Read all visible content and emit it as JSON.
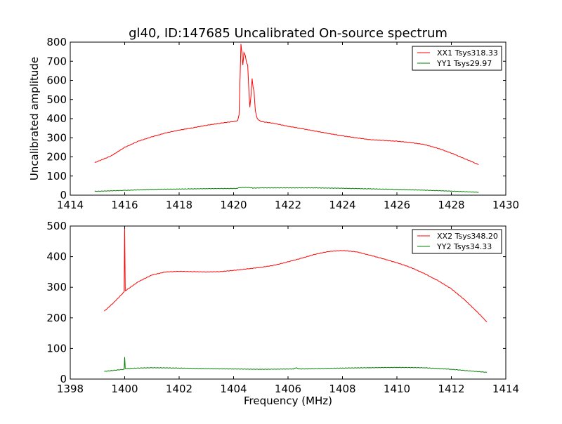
{
  "chart_data": [
    {
      "type": "line",
      "title": "gl40, ID:147685 Uncalibrated On-source spectrum",
      "xlabel": "",
      "ylabel": "Uncalibrated amplitude",
      "xlim": [
        1414,
        1430
      ],
      "ylim": [
        0,
        800
      ],
      "xticks": [
        1414,
        1416,
        1418,
        1420,
        1422,
        1424,
        1426,
        1428,
        1430
      ],
      "yticks": [
        0,
        100,
        200,
        300,
        400,
        500,
        600,
        700,
        800
      ],
      "legend": "top-right",
      "series": [
        {
          "name": "XX1 Tsys318.33",
          "color": "#ff0000",
          "points": [
            [
              1414.9,
              170
            ],
            [
              1415.5,
              205
            ],
            [
              1416,
              250
            ],
            [
              1416.5,
              282
            ],
            [
              1417,
              305
            ],
            [
              1417.5,
              325
            ],
            [
              1418,
              340
            ],
            [
              1418.5,
              352
            ],
            [
              1419,
              365
            ],
            [
              1419.5,
              376
            ],
            [
              1420,
              385
            ],
            [
              1420.15,
              390
            ],
            [
              1420.2,
              420
            ],
            [
              1420.24,
              620
            ],
            [
              1420.27,
              790
            ],
            [
              1420.31,
              740
            ],
            [
              1420.34,
              680
            ],
            [
              1420.38,
              745
            ],
            [
              1420.43,
              730
            ],
            [
              1420.48,
              690
            ],
            [
              1420.52,
              680
            ],
            [
              1420.57,
              520
            ],
            [
              1420.6,
              460
            ],
            [
              1420.64,
              520
            ],
            [
              1420.68,
              610
            ],
            [
              1420.72,
              560
            ],
            [
              1420.75,
              545
            ],
            [
              1420.8,
              440
            ],
            [
              1420.87,
              400
            ],
            [
              1421,
              385
            ],
            [
              1421.5,
              375
            ],
            [
              1422,
              360
            ],
            [
              1422.5,
              348
            ],
            [
              1423,
              335
            ],
            [
              1423.5,
              322
            ],
            [
              1424,
              310
            ],
            [
              1424.5,
              300
            ],
            [
              1425,
              290
            ],
            [
              1425.5,
              286
            ],
            [
              1426,
              282
            ],
            [
              1426.5,
              275
            ],
            [
              1427,
              265
            ],
            [
              1427.5,
              245
            ],
            [
              1428,
              220
            ],
            [
              1428.5,
              190
            ],
            [
              1429,
              160
            ]
          ]
        },
        {
          "name": "YY1 Tsys29.97",
          "color": "#008000",
          "points": [
            [
              1414.9,
              20
            ],
            [
              1416,
              25
            ],
            [
              1417,
              30
            ],
            [
              1418,
              32
            ],
            [
              1419,
              34
            ],
            [
              1420.1,
              35
            ],
            [
              1420.25,
              40
            ],
            [
              1420.6,
              40
            ],
            [
              1420.7,
              37
            ],
            [
              1421,
              38
            ],
            [
              1423,
              38
            ],
            [
              1424,
              36
            ],
            [
              1425,
              33
            ],
            [
              1426,
              30
            ],
            [
              1427,
              26
            ],
            [
              1428,
              21
            ],
            [
              1429,
              15
            ]
          ]
        }
      ]
    },
    {
      "type": "line",
      "title": "",
      "xlabel": "Frequency (MHz)",
      "ylabel": "",
      "xlim": [
        1398,
        1414
      ],
      "ylim": [
        0,
        500
      ],
      "xticks": [
        1398,
        1400,
        1402,
        1404,
        1406,
        1408,
        1410,
        1412,
        1414
      ],
      "yticks": [
        0,
        100,
        200,
        300,
        400,
        500
      ],
      "legend": "top-right",
      "series": [
        {
          "name": "XX2 Tsys348.20",
          "color": "#ff0000",
          "points": [
            [
              1399.25,
              222
            ],
            [
              1399.6,
              250
            ],
            [
              1399.98,
              285
            ],
            [
              1400,
              500
            ],
            [
              1400.02,
              288
            ],
            [
              1400.5,
              318
            ],
            [
              1401,
              340
            ],
            [
              1401.5,
              350
            ],
            [
              1402,
              352
            ],
            [
              1402.5,
              351
            ],
            [
              1403,
              350
            ],
            [
              1403.5,
              351
            ],
            [
              1404,
              355
            ],
            [
              1404.5,
              360
            ],
            [
              1405,
              365
            ],
            [
              1405.5,
              372
            ],
            [
              1406,
              383
            ],
            [
              1406.5,
              395
            ],
            [
              1407,
              408
            ],
            [
              1407.5,
              417
            ],
            [
              1408,
              420
            ],
            [
              1408.5,
              416
            ],
            [
              1409,
              405
            ],
            [
              1409.5,
              393
            ],
            [
              1410,
              380
            ],
            [
              1410.5,
              365
            ],
            [
              1411,
              345
            ],
            [
              1411.5,
              322
            ],
            [
              1412,
              295
            ],
            [
              1412.5,
              258
            ],
            [
              1413,
              215
            ],
            [
              1413.3,
              187
            ]
          ]
        },
        {
          "name": "YY2 Tsys34.33",
          "color": "#008000",
          "points": [
            [
              1399.25,
              25
            ],
            [
              1399.98,
              32
            ],
            [
              1400,
              72
            ],
            [
              1400.02,
              34
            ],
            [
              1400.5,
              36
            ],
            [
              1401,
              37
            ],
            [
              1402,
              36
            ],
            [
              1403,
              34
            ],
            [
              1404,
              33
            ],
            [
              1405,
              32
            ],
            [
              1406.2,
              33
            ],
            [
              1406.3,
              37
            ],
            [
              1406.4,
              33
            ],
            [
              1407,
              34
            ],
            [
              1408,
              36
            ],
            [
              1409,
              37
            ],
            [
              1410,
              38
            ],
            [
              1411,
              37
            ],
            [
              1412,
              32
            ],
            [
              1412.5,
              28
            ],
            [
              1413.3,
              22
            ]
          ]
        }
      ]
    }
  ]
}
